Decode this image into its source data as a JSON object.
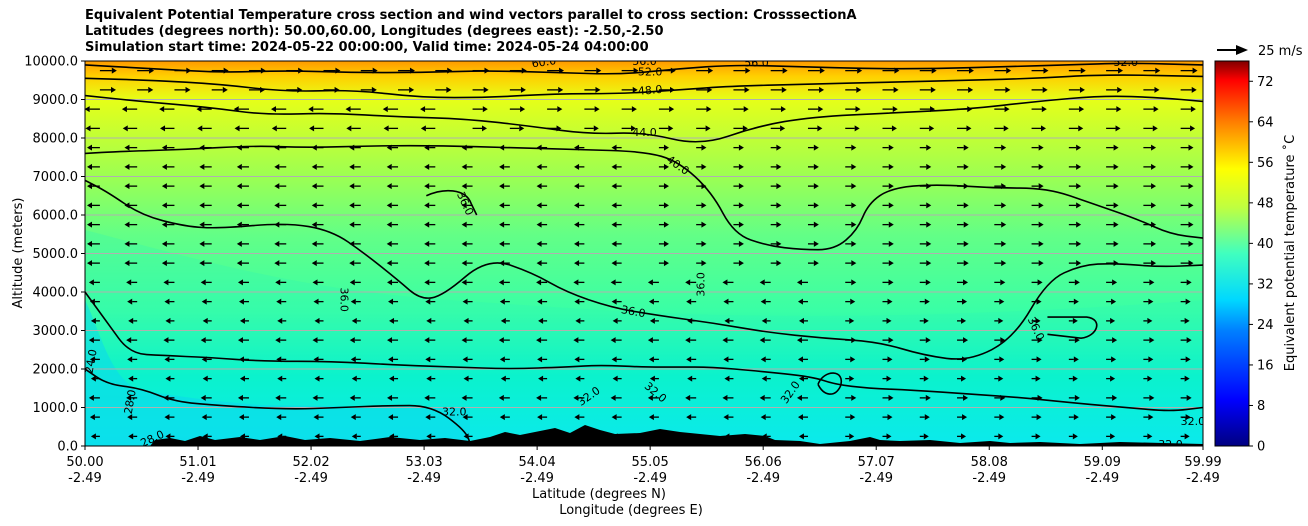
{
  "chart_data": {
    "type": "contour",
    "title_lines": [
      "Equivalent Potential Temperature cross section and wind vectors parallel to cross section: CrosssectionA",
      "Latitudes (degrees north): 50.00,60.00, Longitudes (degrees east): -2.50,-2.50",
      "Simulation start time: 2024-05-22 00:00:00, Valid time: 2024-05-24 04:00:00"
    ],
    "xlabel_lat": "Latitude (degrees N)",
    "xlabel_lon": "Longitude (degrees E)",
    "ylabel": "Altitude (meters)",
    "xlim": [
      50.0,
      59.99
    ],
    "ylim": [
      0,
      10000
    ],
    "x_ticks_lat": [
      "50.00",
      "51.01",
      "52.02",
      "53.03",
      "54.04",
      "55.05",
      "56.06",
      "57.07",
      "58.08",
      "59.09",
      "59.99"
    ],
    "x_ticks_lon": [
      "-2.49",
      "-2.49",
      "-2.49",
      "-2.49",
      "-2.49",
      "-2.49",
      "-2.49",
      "-2.49",
      "-2.49",
      "-2.49",
      "-2.49"
    ],
    "y_ticks": [
      "0.0",
      "1000.0",
      "2000.0",
      "3000.0",
      "4000.0",
      "5000.0",
      "6000.0",
      "7000.0",
      "8000.0",
      "9000.0",
      "10000.0"
    ],
    "y_grid": true,
    "colorbar": {
      "label": "Equivalent potential temperature $^\\circ$C",
      "label_display": "Equivalent potential temperature ˚C",
      "range": [
        0,
        76
      ],
      "ticks": [
        "0",
        "8",
        "16",
        "24",
        "32",
        "40",
        "48",
        "56",
        "64",
        "72"
      ],
      "colormap": "jet"
    },
    "contour_levels_labeled": [
      "24.0",
      "28.0",
      "32.0",
      "36.0",
      "40.0",
      "44.0",
      "48.0",
      "52.0",
      "56.0",
      "60.0"
    ],
    "contours": [
      {
        "level": 28,
        "points": [
          [
            50.0,
            2000
          ],
          [
            50.2,
            1600
          ],
          [
            50.5,
            1500
          ],
          [
            50.8,
            1150
          ],
          [
            51.2,
            1050
          ],
          [
            51.8,
            950
          ],
          [
            52.3,
            1000
          ],
          [
            52.7,
            1050
          ],
          [
            53.1,
            1050
          ],
          [
            53.4,
            400
          ],
          [
            53.45,
            0
          ]
        ]
      },
      {
        "level": 32,
        "points": [
          [
            50.0,
            4000
          ],
          [
            50.2,
            3200
          ],
          [
            50.4,
            2400
          ],
          [
            50.7,
            2350
          ],
          [
            51.1,
            2300
          ],
          [
            51.6,
            2200
          ],
          [
            52.2,
            2200
          ],
          [
            52.8,
            2100
          ],
          [
            53.3,
            2050
          ],
          [
            53.8,
            2000
          ],
          [
            54.3,
            2050
          ],
          [
            54.6,
            2100
          ],
          [
            55.0,
            2050
          ],
          [
            55.3,
            2050
          ],
          [
            55.6,
            2050
          ],
          [
            56.0,
            1950
          ],
          [
            56.5,
            1800
          ],
          [
            56.7,
            1600
          ],
          [
            57.0,
            1500
          ],
          [
            57.4,
            1450
          ],
          [
            57.9,
            1350
          ],
          [
            58.4,
            1250
          ],
          [
            58.9,
            1100
          ],
          [
            59.3,
            1000
          ],
          [
            59.7,
            900
          ],
          [
            59.99,
            1000
          ]
        ]
      },
      {
        "level": 36,
        "points": [
          [
            50.0,
            6900
          ],
          [
            50.2,
            6600
          ],
          [
            50.5,
            6000
          ],
          [
            50.9,
            5700
          ],
          [
            51.2,
            5650
          ],
          [
            51.8,
            5800
          ],
          [
            52.2,
            5600
          ],
          [
            52.5,
            5000
          ],
          [
            52.8,
            4300
          ],
          [
            53.0,
            3800
          ],
          [
            53.2,
            3900
          ],
          [
            53.6,
            4900
          ],
          [
            54.0,
            4500
          ],
          [
            54.3,
            4000
          ],
          [
            54.7,
            3600
          ],
          [
            55.1,
            3400
          ],
          [
            55.6,
            3200
          ],
          [
            56.1,
            2950
          ],
          [
            56.6,
            2800
          ],
          [
            57.1,
            2700
          ],
          [
            57.5,
            2350
          ],
          [
            57.9,
            2200
          ],
          [
            58.3,
            2800
          ],
          [
            58.6,
            4300
          ],
          [
            58.9,
            4700
          ],
          [
            59.2,
            4750
          ],
          [
            59.6,
            4650
          ],
          [
            59.99,
            4700
          ]
        ]
      },
      {
        "level": 40,
        "points": [
          [
            50.0,
            7600
          ],
          [
            50.3,
            7650
          ],
          [
            50.9,
            7700
          ],
          [
            51.5,
            7800
          ],
          [
            52.0,
            7750
          ],
          [
            52.6,
            7800
          ],
          [
            53.2,
            7800
          ],
          [
            53.8,
            7750
          ],
          [
            54.4,
            7700
          ],
          [
            55.0,
            7650
          ],
          [
            55.3,
            7400
          ],
          [
            55.6,
            6600
          ],
          [
            55.8,
            5500
          ],
          [
            56.1,
            5200
          ],
          [
            56.4,
            5100
          ],
          [
            56.7,
            5100
          ],
          [
            56.9,
            5600
          ],
          [
            57.0,
            6300
          ],
          [
            57.2,
            6700
          ],
          [
            57.6,
            6800
          ],
          [
            58.1,
            6700
          ],
          [
            58.6,
            6700
          ],
          [
            59.0,
            6300
          ],
          [
            59.4,
            5900
          ],
          [
            59.7,
            5500
          ],
          [
            59.99,
            5400
          ]
        ]
      },
      {
        "level": 44,
        "points": [
          [
            50.0,
            9100
          ],
          [
            50.5,
            8950
          ],
          [
            51.1,
            8800
          ],
          [
            51.6,
            8600
          ],
          [
            52.2,
            8650
          ],
          [
            52.8,
            8550
          ],
          [
            53.4,
            8500
          ],
          [
            54.0,
            8300
          ],
          [
            54.5,
            8100
          ],
          [
            55.0,
            8150
          ],
          [
            55.5,
            7800
          ],
          [
            56.0,
            8300
          ],
          [
            56.5,
            8550
          ],
          [
            57.2,
            8650
          ],
          [
            57.9,
            8750
          ],
          [
            58.5,
            8950
          ],
          [
            59.1,
            9100
          ],
          [
            59.6,
            9050
          ],
          [
            59.99,
            8950
          ]
        ]
      },
      {
        "level": 48,
        "points": [
          [
            50.0,
            9550
          ],
          [
            50.6,
            9500
          ],
          [
            51.2,
            9400
          ],
          [
            51.8,
            9200
          ],
          [
            52.4,
            9250
          ],
          [
            53.0,
            9050
          ],
          [
            53.6,
            9050
          ],
          [
            54.2,
            9150
          ],
          [
            54.8,
            9150
          ],
          [
            55.3,
            9250
          ],
          [
            55.8,
            9350
          ],
          [
            56.5,
            9400
          ],
          [
            57.2,
            9450
          ],
          [
            57.9,
            9500
          ],
          [
            58.5,
            9550
          ],
          [
            59.1,
            9650
          ],
          [
            59.99,
            9600
          ]
        ]
      },
      {
        "level": 52,
        "points": [
          [
            50.0,
            9900
          ],
          [
            50.6,
            9800
          ],
          [
            51.2,
            9700
          ],
          [
            51.8,
            9750
          ],
          [
            52.4,
            9700
          ],
          [
            53.0,
            9700
          ],
          [
            53.6,
            9750
          ],
          [
            54.2,
            9700
          ],
          [
            54.8,
            9650
          ],
          [
            55.3,
            9800
          ],
          [
            55.8,
            9900
          ],
          [
            56.4,
            9850
          ],
          [
            57.0,
            9800
          ],
          [
            57.6,
            9800
          ],
          [
            58.2,
            9850
          ],
          [
            58.8,
            9900
          ],
          [
            59.3,
            9950
          ],
          [
            59.99,
            9900
          ]
        ]
      }
    ],
    "contour_labels": [
      {
        "text": "60.0",
        "x": 54.1,
        "y": 9980,
        "angle": -8
      },
      {
        "text": "56.0",
        "x": 55.0,
        "y": 10000,
        "angle": 0
      },
      {
        "text": "56.0",
        "x": 56.0,
        "y": 9960,
        "angle": 0
      },
      {
        "text": "52.0",
        "x": 59.3,
        "y": 9980,
        "angle": 0
      },
      {
        "text": "52.0",
        "x": 55.05,
        "y": 9730,
        "angle": 0
      },
      {
        "text": "48.0",
        "x": 55.05,
        "y": 9250,
        "angle": -5
      },
      {
        "text": "44.0",
        "x": 55.0,
        "y": 8150,
        "angle": 0
      },
      {
        "text": "40.0",
        "x": 55.3,
        "y": 7300,
        "angle": 35
      },
      {
        "text": "36.0",
        "x": 53.4,
        "y": 6300,
        "angle": 65
      },
      {
        "text": "36.0",
        "x": 52.32,
        "y": 3800,
        "angle": 90
      },
      {
        "text": "36.0",
        "x": 55.5,
        "y": 4200,
        "angle": -90
      },
      {
        "text": "36.0",
        "x": 54.9,
        "y": 3500,
        "angle": 10
      },
      {
        "text": "36.0",
        "x": 58.5,
        "y": 3050,
        "angle": 65
      },
      {
        "text": "32.0",
        "x": 53.3,
        "y": 900,
        "angle": 0
      },
      {
        "text": "32.0",
        "x": 54.5,
        "y": 1300,
        "angle": -35
      },
      {
        "text": "32.0",
        "x": 55.1,
        "y": 1400,
        "angle": 40
      },
      {
        "text": "32.0",
        "x": 56.3,
        "y": 1400,
        "angle": -55
      },
      {
        "text": "32.0",
        "x": 59.9,
        "y": 650,
        "angle": 0
      },
      {
        "text": "32.0",
        "x": 59.7,
        "y": 50,
        "angle": 0
      },
      {
        "text": "28.0",
        "x": 50.4,
        "y": 1150,
        "angle": -80
      },
      {
        "text": "28.0",
        "x": 50.6,
        "y": 200,
        "angle": -25
      },
      {
        "text": "24.0",
        "x": 50.05,
        "y": 2200,
        "angle": -80
      }
    ],
    "quiver_key": {
      "label": "25 m/s",
      "speed": 25
    },
    "terrain_note": "black filled orography along the surface"
  }
}
